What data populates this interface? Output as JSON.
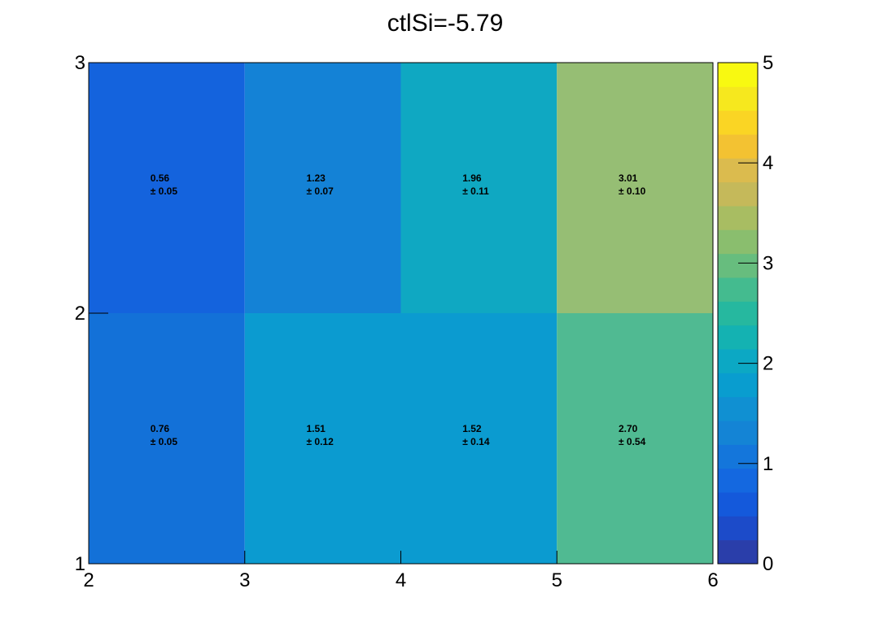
{
  "chart_data": {
    "type": "heatmap",
    "title": "ctlSi=-5.79",
    "xlabel": "",
    "ylabel": "",
    "xlim": [
      2,
      6
    ],
    "ylim": [
      1,
      3
    ],
    "x_ticks": [
      2,
      3,
      4,
      5,
      6
    ],
    "y_ticks": [
      1,
      2,
      3
    ],
    "x_bin_edges": [
      2,
      3,
      4,
      5,
      6
    ],
    "y_bin_edges": [
      1,
      2,
      3
    ],
    "cells": [
      {
        "x": 2.5,
        "y": 1.5,
        "value": "0.76",
        "error": "± 0.05",
        "color": "#1371d8"
      },
      {
        "x": 3.5,
        "y": 1.5,
        "value": "1.51",
        "error": "± 0.12",
        "color": "#0b9bd0"
      },
      {
        "x": 4.5,
        "y": 1.5,
        "value": "1.52",
        "error": "± 0.14",
        "color": "#0b9bd0"
      },
      {
        "x": 5.5,
        "y": 1.5,
        "value": "2.70",
        "error": "± 0.54",
        "color": "#50ba92"
      },
      {
        "x": 2.5,
        "y": 2.5,
        "value": "0.56",
        "error": "± 0.05",
        "color": "#1463dd"
      },
      {
        "x": 3.5,
        "y": 2.5,
        "value": "1.23",
        "error": "± 0.07",
        "color": "#1482d6"
      },
      {
        "x": 4.5,
        "y": 2.5,
        "value": "1.96",
        "error": "± 0.11",
        "color": "#0fa8c2"
      },
      {
        "x": 5.5,
        "y": 2.5,
        "value": "3.01",
        "error": "± 0.10",
        "color": "#96be74"
      }
    ],
    "colorbar": {
      "range": [
        0,
        5
      ],
      "ticks": [
        0,
        1,
        2,
        3,
        4,
        5
      ],
      "colors": [
        "#2a3eaa",
        "#1c4bc9",
        "#1459db",
        "#1468e0",
        "#1476db",
        "#1484d5",
        "#1090d2",
        "#099dcf",
        "#0ca8c4",
        "#14b2b2",
        "#26b89f",
        "#44bb8f",
        "#67bd7e",
        "#8abe6e",
        "#a8bd62",
        "#c5b95a",
        "#dbbb4e",
        "#f3c232",
        "#fad524",
        "#f6e81e",
        "#f8f911"
      ]
    },
    "grid": false,
    "legend": "none"
  }
}
